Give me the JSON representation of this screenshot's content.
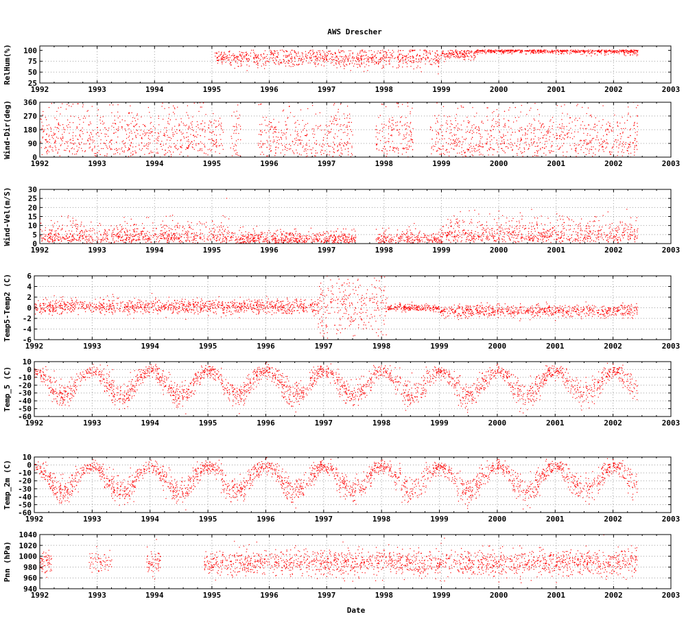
{
  "chart_data": {
    "type": "scatter",
    "title": "AWS Drescher",
    "xlabel": "Date",
    "x_ticks": [
      "1992",
      "1993",
      "1994",
      "1995",
      "1996",
      "1997",
      "1998",
      "1999",
      "2000",
      "2001",
      "2002",
      "2003"
    ],
    "xlim": [
      1992,
      2003
    ],
    "grid": true,
    "series_color": "#ff0000",
    "panels": [
      {
        "name": "relhum",
        "ylabel": "RelHum(%)",
        "ylim": [
          25,
          110
        ],
        "y_ticks": [
          "25",
          "50",
          "75",
          "100"
        ],
        "coverage": [
          [
            1995.05,
            2002.42
          ]
        ],
        "segments": [
          {
            "from": 1995.05,
            "to": 1996.0,
            "mean": 82,
            "spread": 9
          },
          {
            "from": 1996.0,
            "to": 1997.0,
            "mean": 83,
            "spread": 10
          },
          {
            "from": 1997.0,
            "to": 1998.0,
            "mean": 82,
            "spread": 11
          },
          {
            "from": 1998.0,
            "to": 1999.0,
            "mean": 83,
            "spread": 11
          },
          {
            "from": 1999.0,
            "to": 1999.6,
            "mean": 92,
            "spread": 6
          },
          {
            "from": 1999.6,
            "to": 2001.0,
            "mean": 99,
            "spread": 3
          },
          {
            "from": 2001.0,
            "to": 2002.42,
            "mean": 98,
            "spread": 4
          }
        ]
      },
      {
        "name": "winddir",
        "ylabel": "Wind-Dir(deg)",
        "ylim": [
          0,
          360
        ],
        "y_ticks": [
          "0",
          "90",
          "180",
          "270",
          "360"
        ],
        "coverage": [
          [
            1992.0,
            1995.2
          ],
          [
            1995.3,
            1995.5
          ],
          [
            1995.8,
            1997.45
          ],
          [
            1997.85,
            1998.5
          ],
          [
            1998.8,
            2002.42
          ]
        ],
        "clusters": [
          70,
          185
        ],
        "segments": [
          {
            "from": 1992.0,
            "to": 2002.42,
            "mean": 120,
            "spread": 90
          }
        ]
      },
      {
        "name": "windvel",
        "ylabel": "Wind-Vel(m/S)",
        "ylim": [
          0,
          30
        ],
        "y_ticks": [
          "0",
          "5",
          "10",
          "15",
          "20",
          "25",
          "30"
        ],
        "coverage": [
          [
            1992.0,
            1997.5
          ],
          [
            1997.85,
            2002.42
          ]
        ],
        "segments": [
          {
            "from": 1992.0,
            "to": 1995.3,
            "mean": 5,
            "spread": 5
          },
          {
            "from": 1995.3,
            "to": 1997.5,
            "mean": 3,
            "spread": 3
          },
          {
            "from": 1997.85,
            "to": 1999.0,
            "mean": 3,
            "spread": 3
          },
          {
            "from": 1999.0,
            "to": 2002.42,
            "mean": 6,
            "spread": 6
          }
        ]
      },
      {
        "name": "tempdiff",
        "ylabel": "Temp5-Temp2 (C)",
        "ylim": [
          -6,
          6
        ],
        "y_ticks": [
          "-6",
          "-4",
          "-2",
          "0",
          "2",
          "4",
          "6"
        ],
        "coverage": [
          [
            1992.0,
            2002.42
          ]
        ],
        "segments": [
          {
            "from": 1992.0,
            "to": 1996.9,
            "mean": 0.2,
            "spread": 0.7
          },
          {
            "from": 1996.9,
            "to": 1998.1,
            "mean": 0,
            "spread": 3.5
          },
          {
            "from": 1998.1,
            "to": 1999.0,
            "mean": 0,
            "spread": 0.3
          },
          {
            "from": 1999.0,
            "to": 2002.42,
            "mean": -0.6,
            "spread": 0.6
          }
        ]
      },
      {
        "name": "temp5",
        "ylabel": "Temp_5 (C)",
        "ylim": [
          -60,
          10
        ],
        "y_ticks": [
          "-60",
          "-50",
          "-40",
          "-30",
          "-20",
          "-10",
          "0",
          "10"
        ],
        "coverage": [
          [
            1992.0,
            2002.42
          ]
        ],
        "seasonal": {
          "summer": -2,
          "winter": -33,
          "noise": 8
        }
      },
      {
        "name": "temp2m",
        "ylabel": "Temp_2m (C)",
        "ylim": [
          -60,
          10
        ],
        "y_ticks": [
          "-60",
          "-50",
          "-40",
          "-30",
          "-20",
          "-10",
          "0",
          "10"
        ],
        "coverage": [
          [
            1992.0,
            2002.42
          ]
        ],
        "seasonal": {
          "summer": -2,
          "winter": -33,
          "noise": 8
        }
      },
      {
        "name": "pnn",
        "ylabel": "Pnn (hPa)",
        "ylim": [
          940,
          1040
        ],
        "y_ticks": [
          "940",
          "960",
          "980",
          "1000",
          "1020",
          "1040"
        ],
        "coverage": [
          [
            1992.0,
            1992.2
          ],
          [
            1992.85,
            1993.25
          ],
          [
            1993.85,
            1994.1
          ],
          [
            1994.85,
            2002.42
          ]
        ],
        "segments": [
          {
            "from": 1992.0,
            "to": 2002.42,
            "mean": 988,
            "spread": 12
          }
        ]
      }
    ]
  }
}
